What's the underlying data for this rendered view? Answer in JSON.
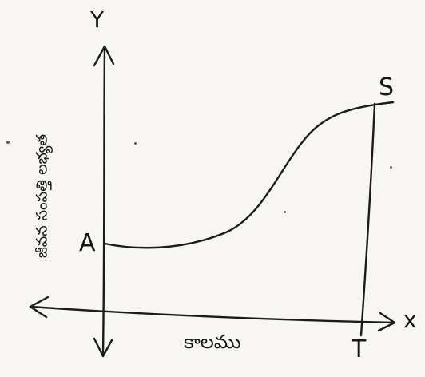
{
  "axes": {
    "x_letter": "x",
    "y_letter": "Y",
    "x_label": "కాలము",
    "y_label": "జీవన సంపత్తి లభ్యత"
  },
  "points": {
    "start": "A",
    "end": "S",
    "time": "T"
  }
}
